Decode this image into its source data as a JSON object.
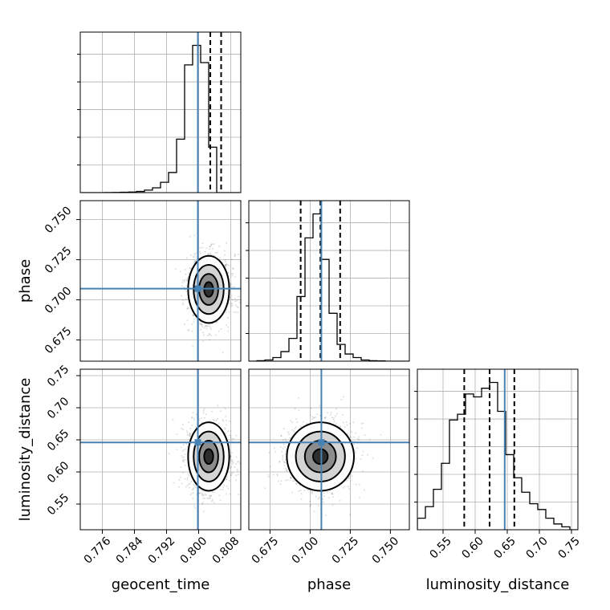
{
  "chart_data": {
    "type": "corner",
    "parameters": [
      "geocent_time",
      "phase",
      "luminosity_distance"
    ],
    "truths": {
      "geocent_time": 0.7998,
      "phase": 0.707,
      "luminosity_distance": 0.646
    },
    "axis_labels": {
      "x": [
        "geocent_time",
        "phase",
        "luminosity_distance"
      ],
      "y": [
        "phase",
        "luminosity_distance"
      ]
    },
    "ticks": {
      "geocent_time": [
        "0.776",
        "0.784",
        "0.792",
        "0.800",
        "0.808"
      ],
      "phase": [
        "0.675",
        "0.700",
        "0.725",
        "0.750"
      ],
      "luminosity_distance": [
        "0.55",
        "0.60",
        "0.65",
        "0.70",
        "0.75"
      ]
    },
    "ranges": {
      "geocent_time": [
        0.7705,
        0.8105
      ],
      "phase": [
        0.6618,
        0.7618
      ],
      "luminosity_distance": [
        0.51,
        0.76
      ]
    },
    "grid": true,
    "histograms": [
      {
        "param": "geocent_time",
        "quantiles": [
          0.7998,
          0.8029,
          0.8056
        ],
        "bin_edges": [
          0.7705,
          0.7725,
          0.7745,
          0.7765,
          0.7785,
          0.7805,
          0.7825,
          0.7845,
          0.7865,
          0.7885,
          0.7905,
          0.7925,
          0.7945,
          0.7965,
          0.7985,
          0.8005,
          0.8025,
          0.8045,
          0.8065,
          0.8085,
          0.8105
        ],
        "counts": [
          0,
          0,
          0,
          1,
          2,
          3,
          5,
          10,
          22,
          42,
          90,
          175,
          465,
          1110,
          1280,
          1130,
          395,
          0,
          0,
          0
        ]
      },
      {
        "param": "phase",
        "quantiles": [
          0.6941,
          0.7064,
          0.7187
        ],
        "bin_edges": [
          0.6618,
          0.6668,
          0.6718,
          0.6768,
          0.6818,
          0.6868,
          0.6918,
          0.6968,
          0.7018,
          0.7068,
          0.7118,
          0.7168,
          0.7218,
          0.7268,
          0.7318,
          0.7368,
          0.7418,
          0.7468,
          0.7518,
          0.7568,
          0.7618
        ],
        "counts": [
          0,
          2,
          5,
          15,
          40,
          95,
          270,
          515,
          615,
          425,
          200,
          70,
          30,
          15,
          5,
          2,
          1,
          0,
          0,
          0
        ]
      },
      {
        "param": "luminosity_distance",
        "quantiles": [
          0.583,
          0.6225,
          0.661
        ],
        "bin_edges": [
          0.51,
          0.5225,
          0.535,
          0.5475,
          0.56,
          0.5725,
          0.585,
          0.5975,
          0.61,
          0.6225,
          0.635,
          0.6475,
          0.66,
          0.6725,
          0.685,
          0.6975,
          0.71,
          0.7225,
          0.735,
          0.7475,
          0.76
        ],
        "counts": [
          8,
          16,
          28,
          46,
          76,
          80,
          94,
          92,
          98,
          102,
          82,
          52,
          36,
          26,
          18,
          14,
          8,
          4,
          2,
          0
        ]
      }
    ],
    "pairs": [
      {
        "x": "geocent_time",
        "y": "phase",
        "center": [
          0.8025,
          0.7065
        ],
        "sigma": [
          0.0025,
          0.0102
        ],
        "levels": [
          0.25,
          0.55,
          0.8
        ]
      },
      {
        "x": "geocent_time",
        "y": "luminosity_distance",
        "center": [
          0.8025,
          0.624
        ],
        "sigma": [
          0.0025,
          0.026
        ],
        "levels": [
          0.25,
          0.55,
          0.8
        ]
      },
      {
        "x": "phase",
        "y": "luminosity_distance",
        "center": [
          0.7064,
          0.624
        ],
        "sigma": [
          0.0102,
          0.026
        ],
        "levels": [
          0.25,
          0.55,
          0.8
        ]
      }
    ],
    "colors": {
      "truth": "#4682b4",
      "line": "#000000",
      "grid": "#b0b0b0"
    }
  }
}
